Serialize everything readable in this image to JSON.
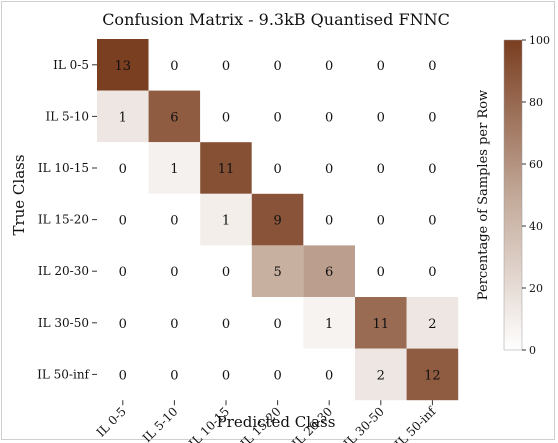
{
  "chart_data": {
    "type": "heatmap",
    "title": "Confusion Matrix - 9.3kB Quantised FNNC",
    "xlabel": "Predicted Class",
    "ylabel": "True Class",
    "x_categories": [
      "IL 0-5",
      "IL 5-10",
      "IL 10-15",
      "IL 15-20",
      "IL 20-30",
      "IL 30-50",
      "IL 50-inf"
    ],
    "y_categories": [
      "IL 0-5",
      "IL 5-10",
      "IL 10-15",
      "IL 15-20",
      "IL 20-30",
      "IL 30-50",
      "IL 50-inf"
    ],
    "values": [
      [
        13,
        0,
        0,
        0,
        0,
        0,
        0
      ],
      [
        1,
        6,
        0,
        0,
        0,
        0,
        0
      ],
      [
        0,
        1,
        11,
        0,
        0,
        0,
        0
      ],
      [
        0,
        0,
        1,
        9,
        0,
        0,
        0
      ],
      [
        0,
        0,
        0,
        5,
        6,
        0,
        0
      ],
      [
        0,
        0,
        0,
        0,
        1,
        11,
        2
      ],
      [
        0,
        0,
        0,
        0,
        0,
        2,
        12
      ]
    ],
    "colorbar": {
      "label": "Percentage of Samples per Row",
      "range": [
        0,
        100
      ],
      "ticks": [
        0,
        20,
        40,
        60,
        80,
        100
      ],
      "low_color": "#ffffff",
      "high_color": "#7a3e20"
    }
  }
}
